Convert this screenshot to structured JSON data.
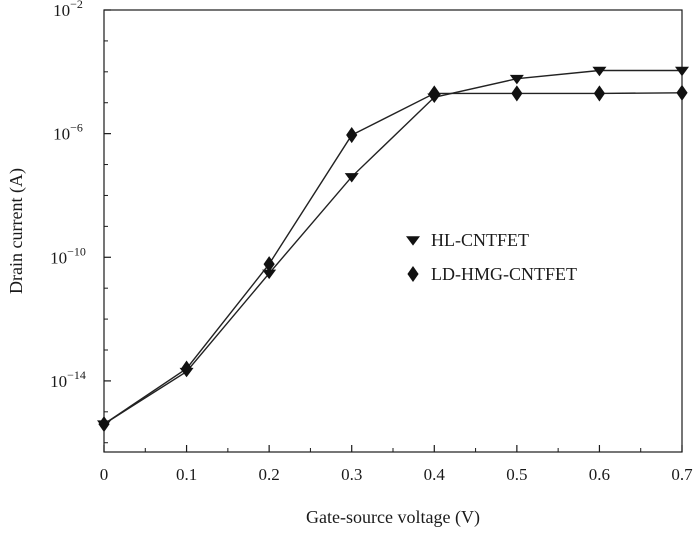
{
  "chart_data": {
    "type": "line",
    "title": "",
    "xlabel": "Gate-source voltage (V)",
    "ylabel": "Drain current (A)",
    "xlim": [
      0,
      0.7
    ],
    "ylim_log10": [
      -16.3,
      -2
    ],
    "yscale": "log",
    "x_ticks": [
      "0",
      "0.1",
      "0.2",
      "0.3",
      "0.4",
      "0.5",
      "0.6",
      "0.7"
    ],
    "y_ticks": [
      {
        "base": "10",
        "exp": "−14",
        "log10": -14
      },
      {
        "base": "10",
        "exp": "−10",
        "log10": -10
      },
      {
        "base": "10",
        "exp": "−6",
        "log10": -6
      },
      {
        "base": "10",
        "exp": "−2",
        "log10": -2
      }
    ],
    "grid": false,
    "legend_position": "center-right",
    "series": [
      {
        "name": "HL-CNTFET",
        "marker": "triangle-down",
        "x": [
          0,
          0.1,
          0.2,
          0.3,
          0.4,
          0.5,
          0.6,
          0.7
        ],
        "y": [
          4e-16,
          2e-14,
          3e-11,
          4e-08,
          1.5e-05,
          6e-05,
          0.00011,
          0.00011
        ]
      },
      {
        "name": "LD-HMG-CNTFET",
        "marker": "diamond",
        "x": [
          0,
          0.1,
          0.2,
          0.3,
          0.4,
          0.5,
          0.6,
          0.7
        ],
        "y": [
          4e-16,
          2.5e-14,
          6e-11,
          9e-07,
          2e-05,
          2e-05,
          2e-05,
          2.1e-05
        ]
      }
    ],
    "colors": {
      "line": "#222222",
      "marker": "#111111",
      "axis": "#1a1a1a"
    }
  }
}
